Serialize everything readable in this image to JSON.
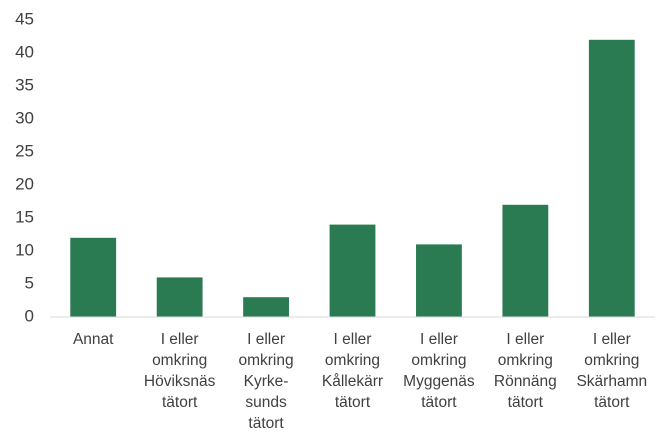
{
  "chart_data": {
    "type": "bar",
    "categories": [
      "Annat",
      "I eller\nomkring\nHöviksnäs\ntätort",
      "I eller\nomkring\nKyrke-\nsunds\ntätort",
      "I eller\nomkring\nKållekärr\ntätort",
      "I eller\nomkring\nMyggenäs\ntätort",
      "I eller\nomkring\nRönnäng\ntätort",
      "I eller\nomkring\nSkärhamn\ntätort"
    ],
    "values": [
      12,
      6,
      3,
      14,
      11,
      17,
      42
    ],
    "color": "#2a7a52",
    "ylim": [
      0,
      45
    ],
    "yticks": [
      0,
      5,
      10,
      15,
      20,
      25,
      30,
      35,
      40,
      45
    ],
    "grid": false
  }
}
